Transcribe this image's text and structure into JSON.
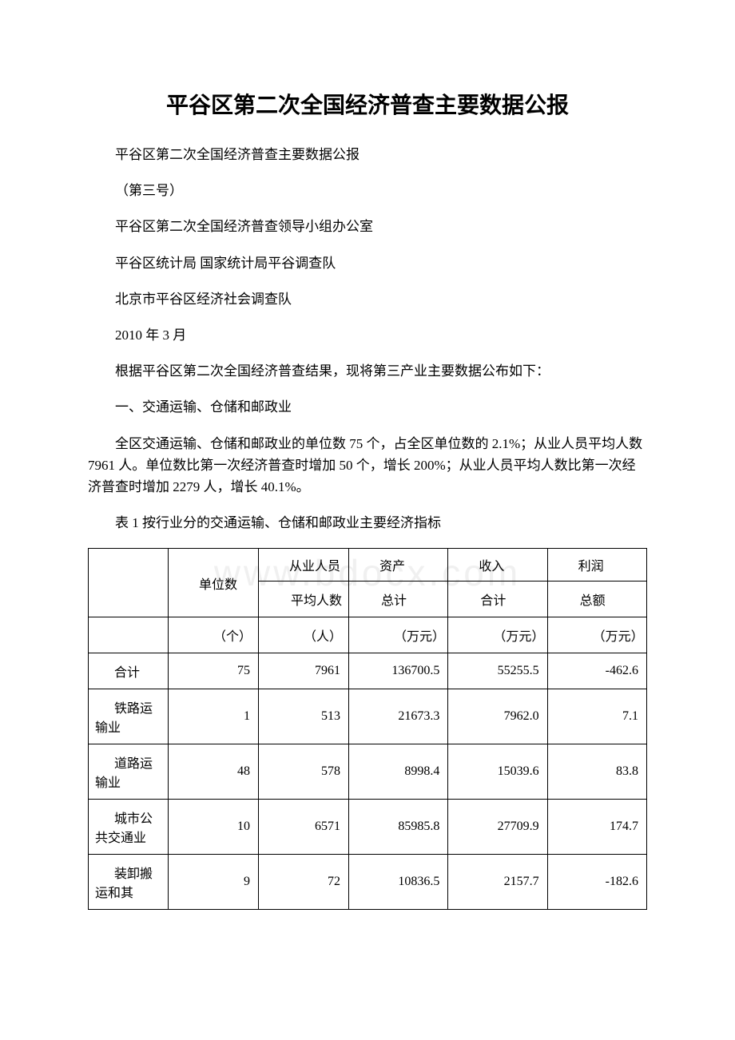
{
  "title": "平谷区第二次全国经济普查主要数据公报",
  "watermark": "www.bdocx.com",
  "paragraphs": {
    "p1": "平谷区第二次全国经济普查主要数据公报",
    "p2": "（第三号）",
    "p3": "平谷区第二次全国经济普查领导小组办公室",
    "p4": "平谷区统计局 国家统计局平谷调查队",
    "p5": "北京市平谷区经济社会调查队",
    "p6": "2010 年 3 月",
    "p7": "根据平谷区第二次全国经济普查结果，现将第三产业主要数据公布如下：",
    "p8": "一、交通运输、仓储和邮政业",
    "p9": "全区交通运输、仓储和邮政业的单位数 75 个，占全区单位数的 2.1%；从业人员平均人数 7961 人。单位数比第一次经济普查时增加 50 个，增长 200%；从业人员平均人数比第一次经济普查时增加 2279 人，增长 40.1%。",
    "p10": "表 1 按行业分的交通运输、仓储和邮政业主要经济指标"
  },
  "table": {
    "headers": {
      "unitCount": "单位数",
      "employees": "从业人员",
      "assets": "资产",
      "revenue": "收入",
      "profit": "利润",
      "avgPeople": "平均人数",
      "total": "总计",
      "sum": "合计",
      "amount": "总额"
    },
    "units": {
      "ge": "（个）",
      "ren": "（人）",
      "wan": "（万元）"
    },
    "rows": [
      {
        "label": "合计",
        "unitCount": "75",
        "employees": "7961",
        "assets": "136700.5",
        "revenue": "55255.5",
        "profit": "-462.6"
      },
      {
        "label": "铁路运输业",
        "unitCount": "1",
        "employees": "513",
        "assets": "21673.3",
        "revenue": "7962.0",
        "profit": "7.1"
      },
      {
        "label": "道路运输业",
        "unitCount": "48",
        "employees": "578",
        "assets": "8998.4",
        "revenue": "15039.6",
        "profit": "83.8"
      },
      {
        "label": "城市公共交通业",
        "unitCount": "10",
        "employees": "6571",
        "assets": "85985.8",
        "revenue": "27709.9",
        "profit": "174.7"
      },
      {
        "label": "装卸搬运和其",
        "unitCount": "9",
        "employees": "72",
        "assets": "10836.5",
        "revenue": "2157.7",
        "profit": "-182.6"
      }
    ]
  },
  "colors": {
    "text": "#000000",
    "background": "#ffffff",
    "border": "#000000",
    "watermark": "#f0f0f0"
  }
}
